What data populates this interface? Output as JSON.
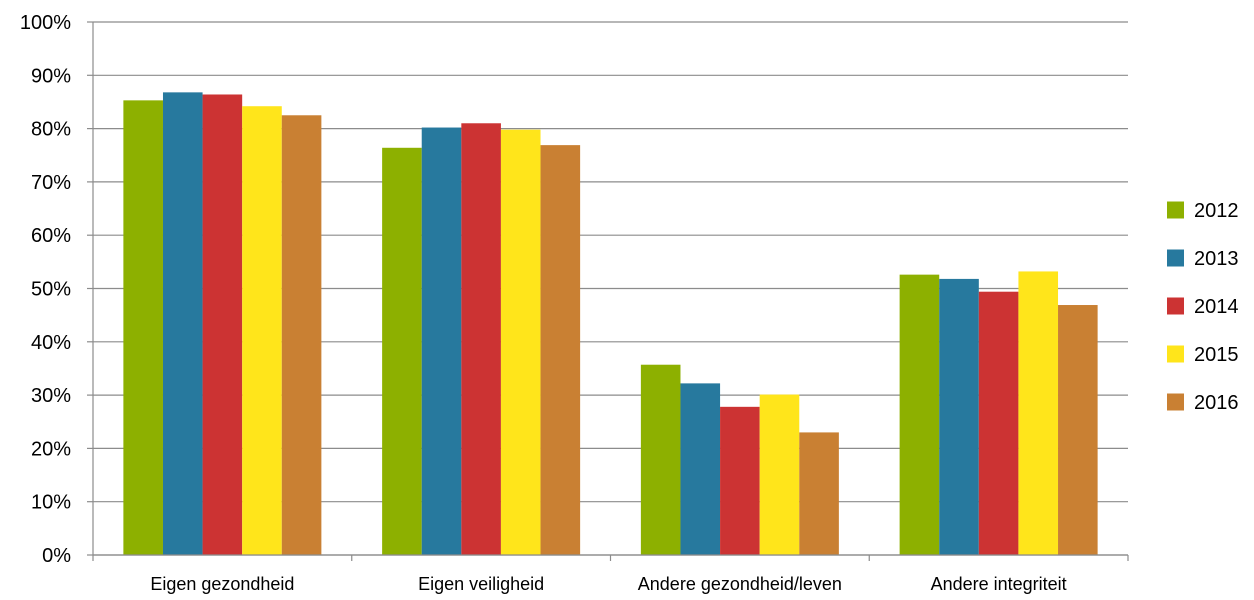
{
  "chart_data": {
    "type": "bar",
    "categories": [
      "Eigen gezondheid",
      "Eigen veiligheid",
      "Andere gezondheid/leven",
      "Andere integriteit"
    ],
    "series": [
      {
        "name": "2012",
        "color": "#8db000",
        "values": [
          85.3,
          76.4,
          35.7,
          52.6
        ]
      },
      {
        "name": "2013",
        "color": "#27799e",
        "values": [
          86.8,
          80.2,
          32.2,
          51.8
        ]
      },
      {
        "name": "2014",
        "color": "#cc3333",
        "values": [
          86.4,
          81.0,
          27.8,
          49.4
        ]
      },
      {
        "name": "2015",
        "color": "#ffe51b",
        "values": [
          84.2,
          79.8,
          30.1,
          53.2
        ]
      },
      {
        "name": "2016",
        "color": "#c98033",
        "values": [
          82.5,
          76.9,
          23.0,
          46.9
        ]
      }
    ],
    "ylim": [
      0,
      100
    ],
    "yticks": [
      "0%",
      "10%",
      "20%",
      "30%",
      "40%",
      "50%",
      "60%",
      "70%",
      "80%",
      "90%",
      "100%"
    ],
    "grid": true,
    "legend_position": "right"
  }
}
